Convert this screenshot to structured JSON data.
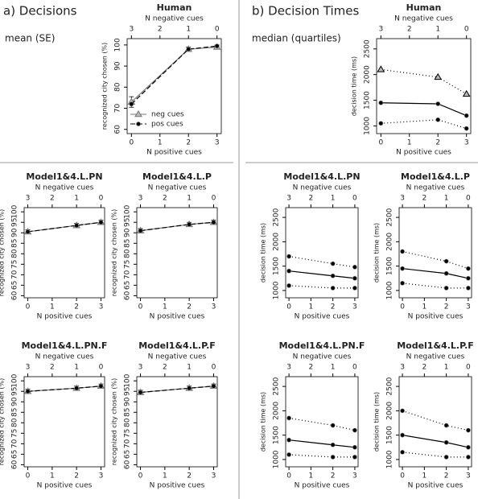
{
  "panels": [
    {
      "label": "a) Decisions",
      "note": "mean (SE)"
    },
    {
      "label": "b) Decision Times",
      "note": "median (quartiles)"
    }
  ],
  "chart_data": [
    {
      "type": "line",
      "title": "Human",
      "xlabel": "N positive cues",
      "x2label": "N negative cues",
      "ylabel": "recognized city chosen (%)",
      "x": [
        0,
        2,
        3
      ],
      "xlim": [
        -0.15,
        3.15
      ],
      "xticks": [
        0,
        1,
        2,
        3
      ],
      "x2lim": [
        3.15,
        -0.15
      ],
      "x2ticks": [
        3,
        2,
        1,
        0
      ],
      "ylim": [
        58,
        103
      ],
      "yticks": [
        60,
        70,
        80,
        90,
        100
      ],
      "legend": "lower-left",
      "series": [
        {
          "name": "neg cues",
          "color": "#777777",
          "marker": "triangle",
          "dash": "none",
          "values": [
            73,
            98,
            99
          ],
          "errors": [
            2.5,
            1,
            1
          ]
        },
        {
          "name": "pos cues",
          "color": "#000000",
          "marker": "circle",
          "dash": "6,3",
          "values": [
            72,
            98,
            99.5
          ]
        }
      ]
    },
    {
      "type": "line",
      "title": "Model1&4.L.PN",
      "xlabel": "N positive cues",
      "x2label": "N negative cues",
      "ylabel": "recognized city chosen (%)",
      "x": [
        0,
        2,
        3
      ],
      "xlim": [
        -0.15,
        3.15
      ],
      "xticks": [
        0,
        1,
        2,
        3
      ],
      "x2lim": [
        3.15,
        -0.15
      ],
      "x2ticks": [
        3,
        2,
        1,
        0
      ],
      "ylim": [
        59,
        102
      ],
      "yticks": [
        60,
        65,
        70,
        75,
        80,
        85,
        90,
        95,
        100
      ],
      "series": [
        {
          "color": "#777777",
          "marker": "triangle",
          "dash": "none",
          "values": [
            90.5,
            93.5,
            95
          ],
          "errors": [
            1,
            1,
            1
          ]
        },
        {
          "color": "#000000",
          "marker": "circle",
          "dash": "6,3",
          "values": [
            90.5,
            93.5,
            95
          ]
        }
      ]
    },
    {
      "type": "line",
      "title": "Model1&4.L.P",
      "xlabel": "N positive cues",
      "x2label": "N negative cues",
      "ylabel": "recognized city chosen (%)",
      "x": [
        0,
        2,
        3
      ],
      "xlim": [
        -0.15,
        3.15
      ],
      "xticks": [
        0,
        1,
        2,
        3
      ],
      "x2lim": [
        3.15,
        -0.15
      ],
      "x2ticks": [
        3,
        2,
        1,
        0
      ],
      "ylim": [
        59,
        102
      ],
      "yticks": [
        60,
        65,
        70,
        75,
        80,
        85,
        90,
        95,
        100
      ],
      "series": [
        {
          "color": "#777777",
          "marker": "triangle",
          "dash": "none",
          "values": [
            91,
            94,
            95
          ],
          "errors": [
            1,
            1,
            1
          ]
        },
        {
          "color": "#000000",
          "marker": "circle",
          "dash": "6,3",
          "values": [
            91,
            94,
            95
          ]
        }
      ]
    },
    {
      "type": "line",
      "title": "Model1&4.L.PN.F",
      "xlabel": "N positive cues",
      "x2label": "N negative cues",
      "ylabel": "recognized city chosen (%)",
      "x": [
        0,
        2,
        3
      ],
      "xlim": [
        -0.15,
        3.15
      ],
      "xticks": [
        0,
        1,
        2,
        3
      ],
      "x2lim": [
        3.15,
        -0.15
      ],
      "x2ticks": [
        3,
        2,
        1,
        0
      ],
      "ylim": [
        59,
        102
      ],
      "yticks": [
        60,
        65,
        70,
        75,
        80,
        85,
        90,
        95,
        100
      ],
      "series": [
        {
          "color": "#777777",
          "marker": "triangle",
          "dash": "none",
          "values": [
            95,
            96.5,
            97.5
          ],
          "errors": [
            1,
            1,
            1
          ]
        },
        {
          "color": "#000000",
          "marker": "circle",
          "dash": "6,3",
          "values": [
            95,
            96.5,
            97.5
          ]
        }
      ]
    },
    {
      "type": "line",
      "title": "Model1&4.L.P.F",
      "xlabel": "N positive cues",
      "x2label": "N negative cues",
      "ylabel": "recognized city chosen (%)",
      "x": [
        0,
        2,
        3
      ],
      "xlim": [
        -0.15,
        3.15
      ],
      "xticks": [
        0,
        1,
        2,
        3
      ],
      "x2lim": [
        3.15,
        -0.15
      ],
      "x2ticks": [
        3,
        2,
        1,
        0
      ],
      "ylim": [
        59,
        102
      ],
      "yticks": [
        60,
        65,
        70,
        75,
        80,
        85,
        90,
        95,
        100
      ],
      "series": [
        {
          "color": "#777777",
          "marker": "triangle",
          "dash": "none",
          "values": [
            94.5,
            96.5,
            97.5
          ],
          "errors": [
            1,
            1,
            1
          ]
        },
        {
          "color": "#000000",
          "marker": "circle",
          "dash": "6,3",
          "values": [
            94.5,
            96.5,
            97.5
          ]
        }
      ]
    },
    {
      "type": "line",
      "title": "Human",
      "xlabel": "N positive cues",
      "x2label": "N negative cues",
      "ylabel": "decision time (ms)",
      "x": [
        0,
        2,
        3
      ],
      "xlim": [
        -0.15,
        3.15
      ],
      "xticks": [
        0,
        1,
        2,
        3
      ],
      "x2lim": [
        3.15,
        -0.15
      ],
      "x2ticks": [
        3,
        2,
        1,
        0
      ],
      "ylim": [
        850,
        2700
      ],
      "yticks": [
        1000,
        1500,
        2000,
        2500
      ],
      "series": [
        {
          "color": "#000000",
          "marker": "triangle",
          "dash": "1,3",
          "values": [
            2100,
            1950,
            1620
          ]
        },
        {
          "color": "#000000",
          "marker": "circle",
          "dash": "none",
          "values": [
            1450,
            1430,
            1200
          ]
        },
        {
          "color": "#000000",
          "marker": "circle",
          "dash": "1,3",
          "values": [
            1050,
            1120,
            950
          ]
        }
      ]
    },
    {
      "type": "line",
      "title": "Model1&4.L.PN",
      "xlabel": "N positive cues",
      "x2label": "N negative cues",
      "ylabel": "decision time (ms)",
      "x": [
        0,
        2,
        3
      ],
      "xlim": [
        -0.15,
        3.15
      ],
      "xticks": [
        0,
        1,
        2,
        3
      ],
      "x2lim": [
        3.15,
        -0.15
      ],
      "x2ticks": [
        3,
        2,
        1,
        0
      ],
      "ylim": [
        850,
        2700
      ],
      "yticks": [
        1000,
        1500,
        2000,
        2500
      ],
      "series": [
        {
          "color": "#000000",
          "marker": "circle",
          "dash": "1,3",
          "values": [
            1700,
            1550,
            1480
          ]
        },
        {
          "color": "#000000",
          "marker": "circle",
          "dash": "none",
          "values": [
            1400,
            1300,
            1250
          ]
        },
        {
          "color": "#000000",
          "marker": "circle",
          "dash": "1,3",
          "values": [
            1100,
            1050,
            1050
          ]
        }
      ]
    },
    {
      "type": "line",
      "title": "Model1&4.L.P",
      "xlabel": "N positive cues",
      "x2label": "N negative cues",
      "ylabel": "decision time (ms)",
      "x": [
        0,
        2,
        3
      ],
      "xlim": [
        -0.15,
        3.15
      ],
      "xticks": [
        0,
        1,
        2,
        3
      ],
      "x2lim": [
        3.15,
        -0.15
      ],
      "x2ticks": [
        3,
        2,
        1,
        0
      ],
      "ylim": [
        850,
        2700
      ],
      "yticks": [
        1000,
        1500,
        2000,
        2500
      ],
      "series": [
        {
          "color": "#000000",
          "marker": "circle",
          "dash": "1,3",
          "values": [
            1800,
            1600,
            1450
          ]
        },
        {
          "color": "#000000",
          "marker": "circle",
          "dash": "none",
          "values": [
            1450,
            1350,
            1250
          ]
        },
        {
          "color": "#000000",
          "marker": "circle",
          "dash": "1,3",
          "values": [
            1150,
            1050,
            1050
          ]
        }
      ]
    },
    {
      "type": "line",
      "title": "Model1&4.L.PN.F",
      "xlabel": "N positive cues",
      "x2label": "N negative cues",
      "ylabel": "decision time (ms)",
      "x": [
        0,
        2,
        3
      ],
      "xlim": [
        -0.15,
        3.15
      ],
      "xticks": [
        0,
        1,
        2,
        3
      ],
      "x2lim": [
        3.15,
        -0.15
      ],
      "x2ticks": [
        3,
        2,
        1,
        0
      ],
      "ylim": [
        850,
        2700
      ],
      "yticks": [
        1000,
        1500,
        2000,
        2500
      ],
      "series": [
        {
          "color": "#000000",
          "marker": "circle",
          "dash": "1,3",
          "values": [
            1850,
            1700,
            1600
          ]
        },
        {
          "color": "#000000",
          "marker": "circle",
          "dash": "none",
          "values": [
            1400,
            1300,
            1250
          ]
        },
        {
          "color": "#000000",
          "marker": "circle",
          "dash": "1,3",
          "values": [
            1100,
            1050,
            1050
          ]
        }
      ]
    },
    {
      "type": "line",
      "title": "Model1&4.L.P.F",
      "xlabel": "N positive cues",
      "x2label": "N negative cues",
      "ylabel": "decision time (ms)",
      "x": [
        0,
        2,
        3
      ],
      "xlim": [
        -0.15,
        3.15
      ],
      "xticks": [
        0,
        1,
        2,
        3
      ],
      "x2lim": [
        3.15,
        -0.15
      ],
      "x2ticks": [
        3,
        2,
        1,
        0
      ],
      "ylim": [
        850,
        2700
      ],
      "yticks": [
        1000,
        1500,
        2000,
        2500
      ],
      "series": [
        {
          "color": "#000000",
          "marker": "circle",
          "dash": "1,3",
          "values": [
            2000,
            1700,
            1600
          ]
        },
        {
          "color": "#000000",
          "marker": "circle",
          "dash": "none",
          "values": [
            1500,
            1350,
            1250
          ]
        },
        {
          "color": "#000000",
          "marker": "circle",
          "dash": "1,3",
          "values": [
            1150,
            1050,
            1050
          ]
        }
      ]
    }
  ]
}
